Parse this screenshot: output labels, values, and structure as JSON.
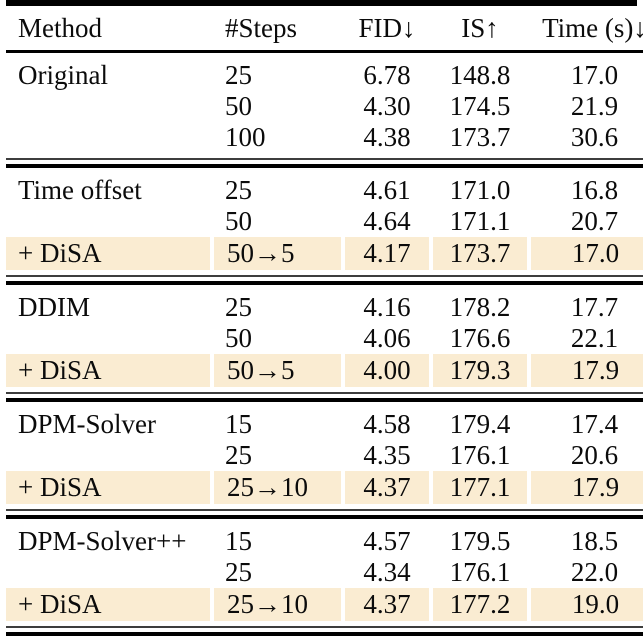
{
  "page": {
    "background": "#ffffff",
    "text_color": "#0b0b0b",
    "highlight_color": "#faecd2"
  },
  "table": {
    "headers": [
      {
        "label": "Method"
      },
      {
        "label": "#Steps"
      },
      {
        "label": "FID↓"
      },
      {
        "label": "IS↑"
      },
      {
        "label": "Time (s)↓"
      }
    ],
    "sections": [
      {
        "name": "original",
        "rows": [
          {
            "highlight": false,
            "cells": [
              "Original",
              "25",
              "6.78",
              "148.8",
              "17.0"
            ]
          },
          {
            "highlight": false,
            "cells": [
              "",
              "50",
              "4.30",
              "174.5",
              "21.9"
            ]
          },
          {
            "highlight": false,
            "cells": [
              "",
              "100",
              "4.38",
              "173.7",
              "30.6"
            ]
          }
        ]
      },
      {
        "name": "time-offset",
        "rows": [
          {
            "highlight": false,
            "cells": [
              "Time offset",
              "25",
              "4.61",
              "171.0",
              "16.8"
            ]
          },
          {
            "highlight": false,
            "cells": [
              "",
              "50",
              "4.64",
              "171.1",
              "20.7"
            ]
          },
          {
            "highlight": true,
            "cells": [
              "+ DiSA",
              "50→5",
              "4.17",
              "173.7",
              "17.0"
            ]
          }
        ]
      },
      {
        "name": "ddim",
        "rows": [
          {
            "highlight": false,
            "cells": [
              "DDIM",
              "25",
              "4.16",
              "178.2",
              "17.7"
            ]
          },
          {
            "highlight": false,
            "cells": [
              "",
              "50",
              "4.06",
              "176.6",
              "22.1"
            ]
          },
          {
            "highlight": true,
            "cells": [
              "+ DiSA",
              "50→5",
              "4.00",
              "179.3",
              "17.9"
            ]
          }
        ]
      },
      {
        "name": "dpm-solver",
        "rows": [
          {
            "highlight": false,
            "cells": [
              "DPM-Solver",
              "15",
              "4.58",
              "179.4",
              "17.4"
            ]
          },
          {
            "highlight": false,
            "cells": [
              "",
              "25",
              "4.35",
              "176.1",
              "20.6"
            ]
          },
          {
            "highlight": true,
            "cells": [
              "+ DiSA",
              "25→10",
              "4.37",
              "177.1",
              "17.9"
            ]
          }
        ]
      },
      {
        "name": "dpm-solver-pp",
        "rows": [
          {
            "highlight": false,
            "cells": [
              "DPM-Solver++",
              "15",
              "4.57",
              "179.5",
              "18.5"
            ]
          },
          {
            "highlight": false,
            "cells": [
              "",
              "25",
              "4.34",
              "176.1",
              "22.0"
            ]
          },
          {
            "highlight": true,
            "cells": [
              "+ DiSA",
              "25→10",
              "4.37",
              "177.2",
              "19.0"
            ]
          }
        ]
      }
    ]
  }
}
